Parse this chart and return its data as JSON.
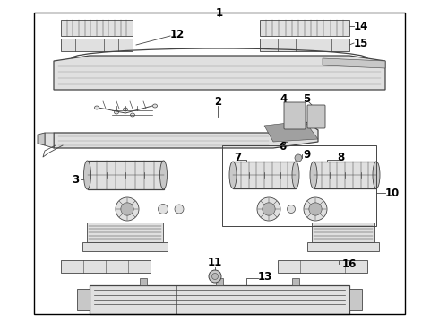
{
  "bg_color": "#ffffff",
  "border_color": "#000000",
  "line_color": "#444444",
  "lw_thin": 0.6,
  "lw_med": 0.9,
  "label_fontsize": 8.5
}
